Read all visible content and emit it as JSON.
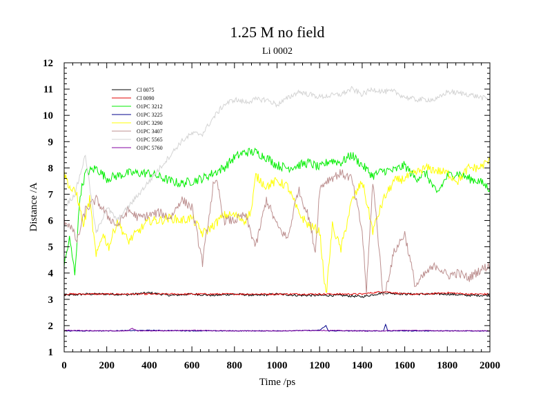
{
  "chart_data": {
    "type": "line",
    "title": "1.25 M no field",
    "subtitle": "Li 0002",
    "xlabel": "Time /ps",
    "ylabel": "Distance /A",
    "xlim": [
      0,
      2000
    ],
    "ylim": [
      1,
      12
    ],
    "xticks": [
      0,
      200,
      400,
      600,
      800,
      1000,
      1200,
      1400,
      1600,
      1800,
      2000
    ],
    "yticks": [
      1,
      2,
      3,
      4,
      5,
      6,
      7,
      8,
      9,
      10,
      11,
      12
    ],
    "legend_position": "top-left",
    "series": [
      {
        "name": "Cl 0075",
        "color": "#000000",
        "x": [
          0,
          100,
          200,
          300,
          400,
          500,
          600,
          700,
          800,
          900,
          1000,
          1100,
          1200,
          1300,
          1400,
          1500,
          1600,
          1700,
          1800,
          1900,
          2000
        ],
        "y": [
          3.15,
          3.2,
          3.2,
          3.18,
          3.25,
          3.15,
          3.2,
          3.15,
          3.2,
          3.15,
          3.2,
          3.15,
          3.15,
          3.15,
          3.1,
          3.25,
          3.2,
          3.2,
          3.2,
          3.15,
          3.15
        ]
      },
      {
        "name": "Cl 0090",
        "color": "#e00000",
        "x": [
          0,
          100,
          200,
          300,
          400,
          500,
          600,
          700,
          800,
          900,
          1000,
          1100,
          1200,
          1300,
          1400,
          1500,
          1600,
          1700,
          1800,
          1900,
          2000
        ],
        "y": [
          3.2,
          3.2,
          3.2,
          3.2,
          3.2,
          3.2,
          3.2,
          3.2,
          3.2,
          3.2,
          3.2,
          3.2,
          3.2,
          3.2,
          3.2,
          3.3,
          3.2,
          3.2,
          3.25,
          3.2,
          3.2
        ]
      },
      {
        "name": "O1PC 3212",
        "color": "#00ee00",
        "x": [
          0,
          25,
          50,
          75,
          100,
          150,
          200,
          300,
          400,
          500,
          550,
          600,
          650,
          700,
          750,
          800,
          850,
          900,
          950,
          1000,
          1050,
          1100,
          1150,
          1200,
          1250,
          1300,
          1350,
          1400,
          1450,
          1500,
          1550,
          1600,
          1650,
          1700,
          1750,
          1800,
          1850,
          1900,
          1950,
          2000
        ],
        "y": [
          4.3,
          5.3,
          4.0,
          7.0,
          7.8,
          8.0,
          7.6,
          7.8,
          7.8,
          7.5,
          7.4,
          7.5,
          7.6,
          7.8,
          8.0,
          8.4,
          8.6,
          8.6,
          8.4,
          8.1,
          8.0,
          8.1,
          8.2,
          8.0,
          8.3,
          8.2,
          8.5,
          8.1,
          7.7,
          7.9,
          7.9,
          8.1,
          7.6,
          7.8,
          7.0,
          7.7,
          7.8,
          7.6,
          7.5,
          7.2
        ]
      },
      {
        "name": "O1PC 3225",
        "color": "#00008b",
        "x": [
          0,
          200,
          400,
          600,
          800,
          1000,
          1200,
          1230,
          1240,
          1250,
          1400,
          1500,
          1510,
          1520,
          1600,
          1800,
          2000
        ],
        "y": [
          1.8,
          1.8,
          1.82,
          1.8,
          1.8,
          1.8,
          1.82,
          2.0,
          1.8,
          1.8,
          1.8,
          1.8,
          2.05,
          1.8,
          1.8,
          1.8,
          1.8
        ]
      },
      {
        "name": "O1PC 3290",
        "color": "#ffff00",
        "x": [
          0,
          30,
          60,
          90,
          120,
          150,
          180,
          210,
          250,
          300,
          350,
          400,
          450,
          500,
          550,
          600,
          650,
          700,
          750,
          800,
          850,
          880,
          900,
          950,
          1000,
          1050,
          1100,
          1150,
          1200,
          1230,
          1260,
          1300,
          1350,
          1400,
          1450,
          1500,
          1550,
          1600,
          1650,
          1700,
          1750,
          1800,
          1850,
          1900,
          1950,
          2000
        ],
        "y": [
          7.8,
          7.2,
          7.0,
          5.8,
          6.8,
          4.6,
          5.5,
          5.0,
          6.0,
          5.2,
          5.6,
          6.0,
          6.0,
          6.1,
          6.0,
          6.1,
          5.5,
          5.8,
          6.2,
          6.2,
          6.0,
          6.4,
          7.7,
          7.3,
          7.5,
          7.3,
          6.3,
          5.8,
          5.6,
          3.1,
          5.8,
          4.9,
          6.7,
          7.5,
          5.6,
          6.8,
          7.5,
          7.6,
          7.8,
          8.0,
          7.9,
          7.8,
          7.5,
          8.0,
          8.0,
          8.3
        ]
      },
      {
        "name": "O1PC 3407",
        "color": "#bc8f8f",
        "x": [
          0,
          30,
          60,
          100,
          150,
          200,
          250,
          300,
          350,
          400,
          450,
          500,
          550,
          600,
          650,
          700,
          720,
          750,
          800,
          850,
          900,
          950,
          1000,
          1050,
          1100,
          1150,
          1180,
          1200,
          1230,
          1250,
          1300,
          1350,
          1400,
          1420,
          1450,
          1480,
          1500,
          1550,
          1600,
          1650,
          1700,
          1750,
          1800,
          1850,
          1900,
          1950,
          2000
        ],
        "y": [
          6.0,
          5.8,
          5.2,
          6.4,
          6.8,
          6.2,
          5.8,
          6.4,
          6.1,
          6.2,
          6.3,
          6.1,
          6.8,
          6.5,
          4.4,
          7.3,
          7.4,
          6.0,
          6.0,
          6.2,
          5.0,
          6.8,
          5.8,
          5.3,
          7.2,
          6.1,
          4.8,
          7.2,
          7.5,
          7.6,
          7.8,
          7.6,
          5.6,
          3.3,
          7.5,
          4.9,
          3.0,
          4.8,
          5.5,
          3.5,
          4.0,
          4.3,
          3.9,
          4.0,
          3.8,
          4.1,
          4.3
        ]
      },
      {
        "name": "O1PC 5565",
        "color": "#d3d3d3",
        "x": [
          0,
          50,
          100,
          150,
          200,
          250,
          300,
          350,
          400,
          450,
          500,
          550,
          600,
          650,
          700,
          750,
          800,
          850,
          900,
          950,
          1000,
          1100,
          1200,
          1300,
          1350,
          1400,
          1450,
          1500,
          1550,
          1600,
          1650,
          1700,
          1750,
          1800,
          1900,
          2000
        ],
        "y": [
          6.5,
          7.0,
          8.5,
          5.5,
          6.5,
          6.0,
          6.5,
          7.0,
          7.5,
          8.0,
          8.5,
          9.0,
          9.3,
          9.3,
          9.9,
          10.4,
          10.6,
          10.5,
          10.6,
          10.6,
          10.4,
          10.9,
          10.7,
          10.8,
          11.0,
          10.8,
          11.0,
          10.9,
          10.9,
          10.7,
          10.6,
          10.6,
          10.6,
          10.9,
          10.8,
          10.6
        ]
      },
      {
        "name": "O1PC 5760",
        "color": "#8000a0",
        "x": [
          0,
          200,
          300,
          320,
          340,
          400,
          600,
          800,
          1000,
          1200,
          1400,
          1500,
          1600,
          1800,
          2000
        ],
        "y": [
          1.82,
          1.8,
          1.8,
          1.9,
          1.8,
          1.8,
          1.82,
          1.8,
          1.8,
          1.82,
          1.8,
          1.8,
          1.82,
          1.8,
          1.8
        ]
      }
    ]
  }
}
